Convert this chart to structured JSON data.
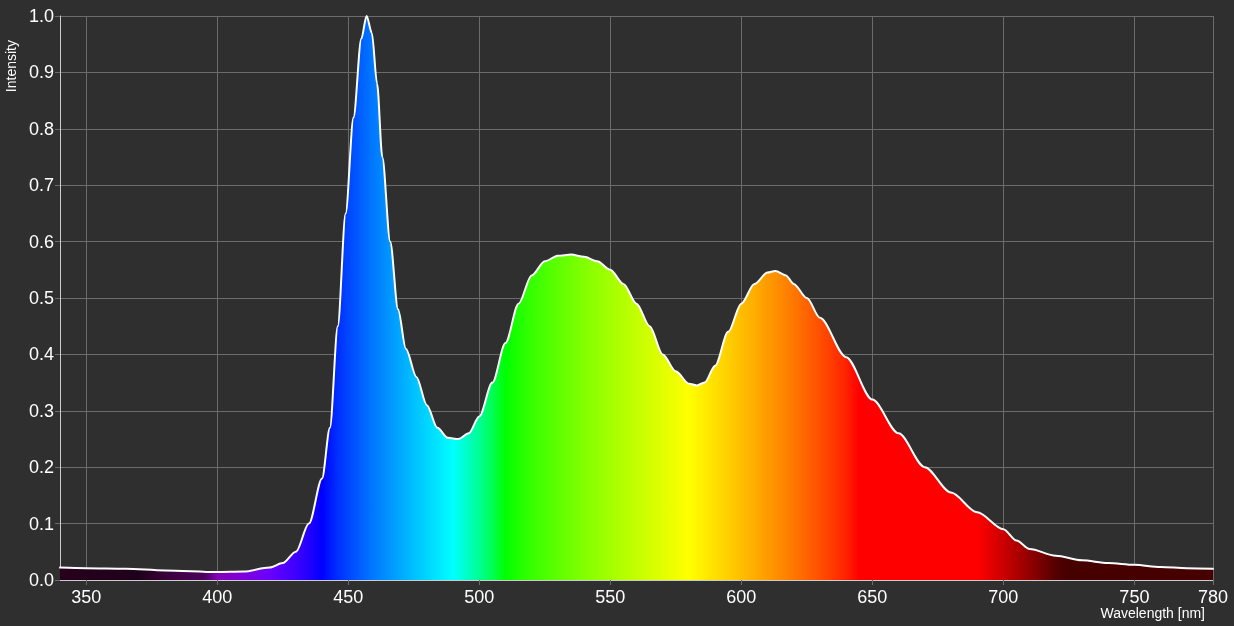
{
  "chart_data": {
    "type": "area",
    "xlabel": "Wavelength [nm]",
    "ylabel": "Intensity",
    "xlim": [
      340,
      780
    ],
    "xticks": [
      350,
      400,
      450,
      500,
      550,
      600,
      650,
      700,
      750,
      780
    ],
    "ylim": [
      0,
      1
    ],
    "yticks": [
      {
        "value": 0,
        "label": "0.0"
      },
      0.1,
      0.2,
      0.3,
      0.4,
      0.5,
      0.6,
      0.7,
      0.8,
      0.9,
      {
        "value": 1,
        "label": "1.0"
      }
    ],
    "grid": true,
    "series": [
      {
        "color": "#ffffff",
        "x": [
          340,
          350,
          365,
          380,
          400,
          410,
          420,
          425,
          430,
          435,
          440,
          443,
          446,
          449,
          452,
          455,
          457,
          459,
          461,
          463,
          466,
          469,
          472,
          476,
          480,
          484,
          488,
          492,
          496,
          500,
          505,
          510,
          515,
          520,
          525,
          530,
          535,
          540,
          545,
          550,
          555,
          560,
          565,
          570,
          575,
          580,
          583,
          586,
          590,
          595,
          600,
          605,
          610,
          613,
          617,
          620,
          625,
          630,
          640,
          650,
          660,
          670,
          680,
          690,
          700,
          705,
          710,
          720,
          730,
          740,
          750,
          760,
          770,
          780
        ],
        "values": [
          0.022,
          0.021,
          0.02,
          0.017,
          0.014,
          0.015,
          0.022,
          0.03,
          0.05,
          0.1,
          0.18,
          0.27,
          0.45,
          0.65,
          0.82,
          0.96,
          1.0,
          0.97,
          0.88,
          0.75,
          0.6,
          0.48,
          0.41,
          0.36,
          0.31,
          0.27,
          0.252,
          0.25,
          0.26,
          0.29,
          0.35,
          0.42,
          0.49,
          0.54,
          0.565,
          0.575,
          0.577,
          0.573,
          0.565,
          0.55,
          0.525,
          0.49,
          0.45,
          0.4,
          0.37,
          0.348,
          0.345,
          0.35,
          0.38,
          0.44,
          0.49,
          0.525,
          0.545,
          0.548,
          0.54,
          0.525,
          0.5,
          0.465,
          0.395,
          0.32,
          0.26,
          0.2,
          0.155,
          0.12,
          0.09,
          0.07,
          0.055,
          0.043,
          0.035,
          0.03,
          0.027,
          0.023,
          0.021,
          0.02
        ]
      }
    ]
  }
}
